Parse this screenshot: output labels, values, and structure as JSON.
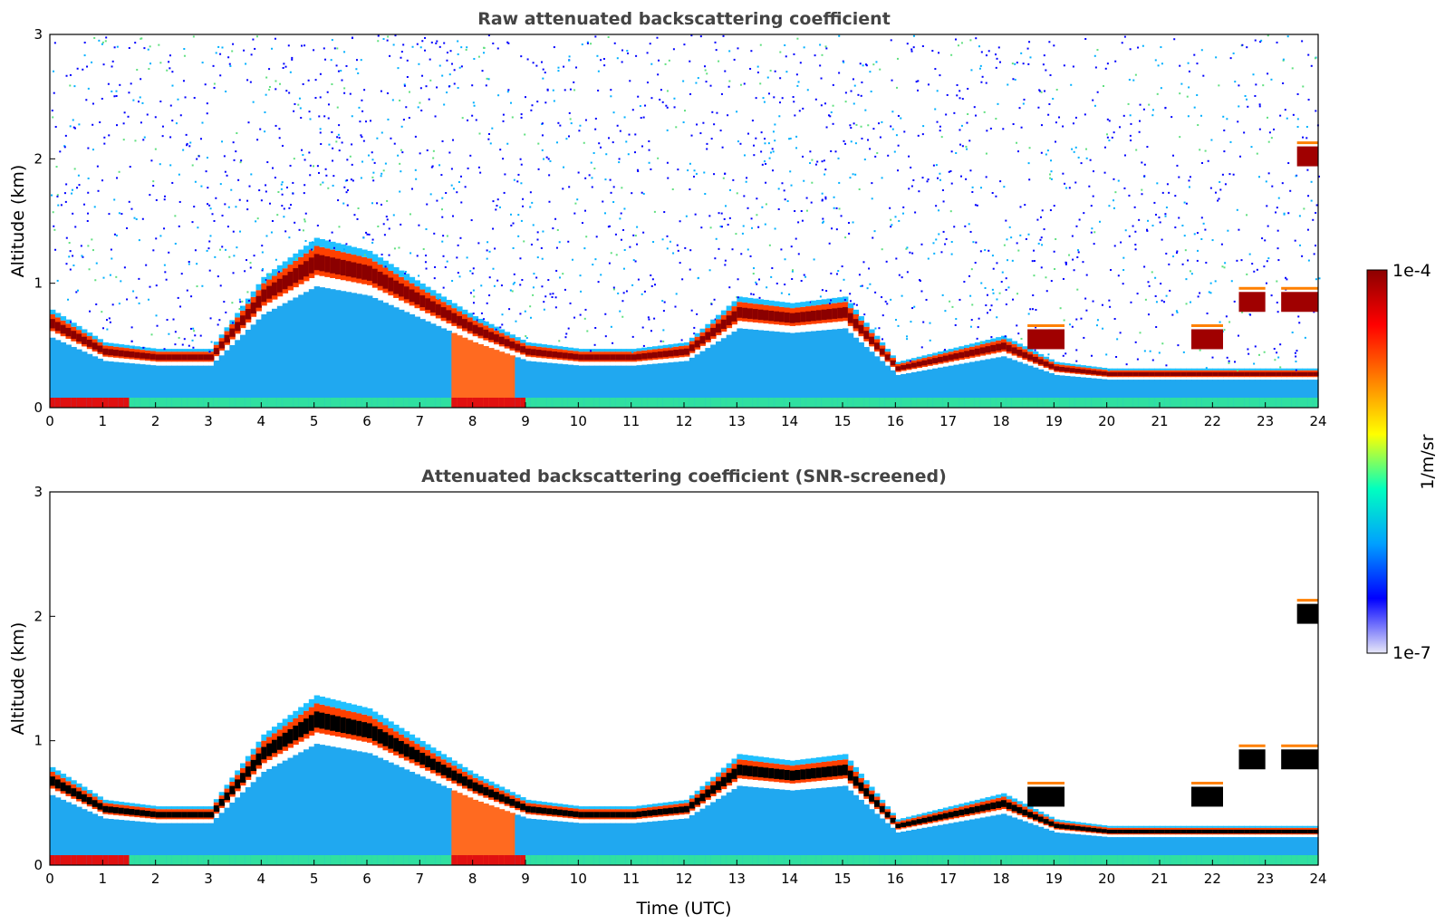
{
  "chart_data": [
    {
      "type": "heatmap",
      "title": "Raw attenuated backscattering coefficient",
      "xlabel": "",
      "ylabel": "Altitude (km)",
      "xlim": [
        0,
        24
      ],
      "ylim": [
        0,
        3
      ],
      "x_ticks": [
        "0",
        "1",
        "2",
        "3",
        "4",
        "5",
        "6",
        "7",
        "8",
        "9",
        "10",
        "11",
        "12",
        "13",
        "14",
        "15",
        "16",
        "17",
        "18",
        "19",
        "20",
        "21",
        "22",
        "23",
        "24"
      ],
      "y_ticks": [
        "0",
        "1",
        "2",
        "3"
      ],
      "grid": false,
      "screened": false,
      "layer": {
        "boundary_layer_top_km": [
          0.75,
          0.5,
          0.45,
          0.45,
          1.0,
          1.3,
          1.2,
          0.95,
          0.7,
          0.5,
          0.45,
          0.45,
          0.5,
          0.85,
          0.8,
          0.85,
          0.35,
          0.45,
          0.55,
          0.35,
          0.3,
          0.3,
          0.3,
          0.3,
          0.3
        ],
        "cloud_layers": [
          {
            "x_start": 18.5,
            "x_end": 19.2,
            "altitude_km": 0.55
          },
          {
            "x_start": 21.6,
            "x_end": 22.2,
            "altitude_km": 0.55
          },
          {
            "x_start": 22.5,
            "x_end": 23.0,
            "altitude_km": 0.85
          },
          {
            "x_start": 23.3,
            "x_end": 24.0,
            "altitude_km": 0.85
          },
          {
            "x_start": 23.6,
            "x_end": 24.0,
            "altitude_km": 2.02
          }
        ]
      }
    },
    {
      "type": "heatmap",
      "title": "Attenuated backscattering coefficient (SNR-screened)",
      "xlabel": "Time (UTC)",
      "ylabel": "Altitude (km)",
      "xlim": [
        0,
        24
      ],
      "ylim": [
        0,
        3
      ],
      "x_ticks": [
        "0",
        "1",
        "2",
        "3",
        "4",
        "5",
        "6",
        "7",
        "8",
        "9",
        "10",
        "11",
        "12",
        "13",
        "14",
        "15",
        "16",
        "17",
        "18",
        "19",
        "20",
        "21",
        "22",
        "23",
        "24"
      ],
      "y_ticks": [
        "0",
        "1",
        "2",
        "3"
      ],
      "grid": false,
      "screened": true,
      "layer": {
        "boundary_layer_top_km": [
          0.75,
          0.5,
          0.45,
          0.45,
          1.0,
          1.3,
          1.2,
          0.95,
          0.7,
          0.5,
          0.45,
          0.45,
          0.5,
          0.85,
          0.8,
          0.85,
          0.35,
          0.45,
          0.55,
          0.35,
          0.3,
          0.3,
          0.3,
          0.3,
          0.3
        ],
        "cloud_layers": [
          {
            "x_start": 18.5,
            "x_end": 19.2,
            "altitude_km": 0.55
          },
          {
            "x_start": 21.6,
            "x_end": 22.2,
            "altitude_km": 0.55
          },
          {
            "x_start": 22.5,
            "x_end": 23.0,
            "altitude_km": 0.85
          },
          {
            "x_start": 23.3,
            "x_end": 24.0,
            "altitude_km": 0.85
          },
          {
            "x_start": 23.6,
            "x_end": 24.0,
            "altitude_km": 2.02
          }
        ]
      }
    }
  ],
  "colorbar": {
    "label": "1/m/sr",
    "max_label": "1e-4",
    "min_label": "1e-7",
    "range": [
      1e-07,
      0.0001
    ],
    "scale": "log",
    "colormap": "jet",
    "colors": [
      "#e8e8f8",
      "#0000ff",
      "#00a0ff",
      "#00ffc0",
      "#ffff00",
      "#ff8000",
      "#ff0000",
      "#8b0000"
    ]
  }
}
